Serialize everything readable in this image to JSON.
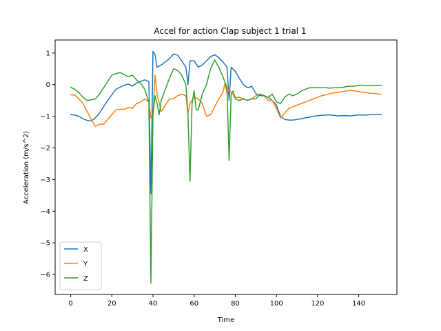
{
  "chart_data": {
    "type": "line",
    "title": "Accel for action Clap subject 1 trial 1",
    "xlabel": "Time",
    "ylabel": "Acceleration (m/s^2)",
    "xlim": [
      -7.55,
      158.55
    ],
    "ylim": [
      -6.63,
      1.41
    ],
    "xticks": [
      0,
      20,
      40,
      60,
      80,
      100,
      120,
      140
    ],
    "yticks": [
      -6,
      -5,
      -4,
      -3,
      -2,
      -1,
      0,
      1
    ],
    "legend": "bottom-left",
    "grid": false,
    "series": [
      {
        "name": "X",
        "color": "#1f77b4",
        "points": [
          [
            0,
            -0.95
          ],
          [
            2,
            -0.96
          ],
          [
            4,
            -1.0
          ],
          [
            6,
            -1.08
          ],
          [
            8,
            -1.13
          ],
          [
            10,
            -1.15
          ],
          [
            12,
            -1.05
          ],
          [
            14,
            -0.9
          ],
          [
            16,
            -0.7
          ],
          [
            18,
            -0.5
          ],
          [
            20,
            -0.32
          ],
          [
            22,
            -0.15
          ],
          [
            24,
            -0.08
          ],
          [
            26,
            -0.02
          ],
          [
            28,
            0.02
          ],
          [
            30,
            -0.05
          ],
          [
            32,
            0.05
          ],
          [
            34,
            0.1
          ],
          [
            36,
            0.15
          ],
          [
            38,
            0.1
          ],
          [
            39,
            -3.45
          ],
          [
            40,
            1.05
          ],
          [
            41,
            0.95
          ],
          [
            42,
            0.55
          ],
          [
            44,
            0.62
          ],
          [
            46,
            0.72
          ],
          [
            48,
            0.82
          ],
          [
            50,
            0.97
          ],
          [
            52,
            0.93
          ],
          [
            54,
            0.75
          ],
          [
            56,
            0.55
          ],
          [
            57,
            0.0
          ],
          [
            58,
            0.75
          ],
          [
            60,
            0.75
          ],
          [
            62,
            0.55
          ],
          [
            64,
            0.62
          ],
          [
            66,
            0.75
          ],
          [
            68,
            0.88
          ],
          [
            70,
            0.95
          ],
          [
            72,
            0.85
          ],
          [
            74,
            0.72
          ],
          [
            76,
            0.55
          ],
          [
            77,
            -0.5
          ],
          [
            78,
            0.55
          ],
          [
            80,
            0.42
          ],
          [
            82,
            0.2
          ],
          [
            84,
            0.0
          ],
          [
            86,
            -0.1
          ],
          [
            88,
            -0.05
          ],
          [
            90,
            -0.28
          ],
          [
            92,
            -0.35
          ],
          [
            94,
            -0.35
          ],
          [
            96,
            -0.4
          ],
          [
            98,
            -0.5
          ],
          [
            100,
            -0.65
          ],
          [
            102,
            -1.0
          ],
          [
            104,
            -1.1
          ],
          [
            106,
            -1.12
          ],
          [
            108,
            -1.12
          ],
          [
            110,
            -1.1
          ],
          [
            112,
            -1.08
          ],
          [
            114,
            -1.05
          ],
          [
            116,
            -1.03
          ],
          [
            118,
            -1.0
          ],
          [
            120,
            -0.98
          ],
          [
            122,
            -0.97
          ],
          [
            124,
            -0.96
          ],
          [
            126,
            -0.96
          ],
          [
            128,
            -0.97
          ],
          [
            130,
            -0.99
          ],
          [
            132,
            -0.98
          ],
          [
            134,
            -0.98
          ],
          [
            136,
            -0.99
          ],
          [
            138,
            -0.97
          ],
          [
            140,
            -0.96
          ],
          [
            142,
            -0.96
          ],
          [
            144,
            -0.96
          ],
          [
            146,
            -0.95
          ],
          [
            148,
            -0.95
          ],
          [
            150,
            -0.95
          ],
          [
            151,
            -0.94
          ]
        ]
      },
      {
        "name": "Y",
        "color": "#ff7f0e",
        "points": [
          [
            0,
            -0.32
          ],
          [
            2,
            -0.33
          ],
          [
            4,
            -0.45
          ],
          [
            6,
            -0.6
          ],
          [
            8,
            -0.85
          ],
          [
            10,
            -1.1
          ],
          [
            12,
            -1.32
          ],
          [
            14,
            -1.25
          ],
          [
            16,
            -1.25
          ],
          [
            18,
            -1.1
          ],
          [
            20,
            -0.95
          ],
          [
            22,
            -0.8
          ],
          [
            24,
            -0.78
          ],
          [
            26,
            -0.78
          ],
          [
            28,
            -0.72
          ],
          [
            30,
            -0.75
          ],
          [
            32,
            -0.6
          ],
          [
            34,
            -0.55
          ],
          [
            36,
            -0.45
          ],
          [
            38,
            -0.55
          ],
          [
            39,
            -1.05
          ],
          [
            40,
            -0.9
          ],
          [
            41,
            0.3
          ],
          [
            42,
            -0.3
          ],
          [
            44,
            -0.85
          ],
          [
            46,
            -0.65
          ],
          [
            48,
            -0.45
          ],
          [
            50,
            -0.45
          ],
          [
            52,
            -0.35
          ],
          [
            54,
            -0.3
          ],
          [
            56,
            -0.35
          ],
          [
            57,
            -0.9
          ],
          [
            58,
            -0.6
          ],
          [
            60,
            -0.4
          ],
          [
            62,
            -0.45
          ],
          [
            64,
            -0.6
          ],
          [
            66,
            -1.0
          ],
          [
            68,
            -0.95
          ],
          [
            70,
            -0.7
          ],
          [
            72,
            -0.45
          ],
          [
            74,
            -0.25
          ],
          [
            75,
            0.05
          ],
          [
            76,
            -0.3
          ],
          [
            77,
            -0.15
          ],
          [
            78,
            -0.25
          ],
          [
            80,
            -0.4
          ],
          [
            82,
            -0.4
          ],
          [
            84,
            -0.45
          ],
          [
            86,
            -0.5
          ],
          [
            88,
            -0.45
          ],
          [
            90,
            -0.35
          ],
          [
            92,
            -0.3
          ],
          [
            94,
            -0.35
          ],
          [
            96,
            -0.5
          ],
          [
            98,
            -0.5
          ],
          [
            100,
            -0.75
          ],
          [
            102,
            -1.05
          ],
          [
            104,
            -0.9
          ],
          [
            106,
            -0.75
          ],
          [
            108,
            -0.7
          ],
          [
            110,
            -0.65
          ],
          [
            112,
            -0.6
          ],
          [
            114,
            -0.55
          ],
          [
            116,
            -0.5
          ],
          [
            118,
            -0.45
          ],
          [
            120,
            -0.4
          ],
          [
            122,
            -0.35
          ],
          [
            124,
            -0.32
          ],
          [
            126,
            -0.28
          ],
          [
            128,
            -0.26
          ],
          [
            130,
            -0.25
          ],
          [
            132,
            -0.22
          ],
          [
            134,
            -0.2
          ],
          [
            136,
            -0.18
          ],
          [
            138,
            -0.2
          ],
          [
            140,
            -0.22
          ],
          [
            142,
            -0.24
          ],
          [
            144,
            -0.26
          ],
          [
            146,
            -0.27
          ],
          [
            148,
            -0.28
          ],
          [
            150,
            -0.3
          ],
          [
            151,
            -0.31
          ]
        ]
      },
      {
        "name": "Z",
        "color": "#2ca02c",
        "points": [
          [
            0,
            -0.08
          ],
          [
            2,
            -0.15
          ],
          [
            4,
            -0.25
          ],
          [
            6,
            -0.4
          ],
          [
            8,
            -0.5
          ],
          [
            10,
            -0.48
          ],
          [
            12,
            -0.45
          ],
          [
            14,
            -0.3
          ],
          [
            16,
            -0.1
          ],
          [
            18,
            0.1
          ],
          [
            20,
            0.3
          ],
          [
            22,
            0.35
          ],
          [
            24,
            0.38
          ],
          [
            26,
            0.32
          ],
          [
            28,
            0.25
          ],
          [
            30,
            0.3
          ],
          [
            32,
            0.15
          ],
          [
            34,
            0.05
          ],
          [
            36,
            -0.15
          ],
          [
            38,
            -0.55
          ],
          [
            39,
            -6.28
          ],
          [
            40,
            -0.95
          ],
          [
            41,
            -0.35
          ],
          [
            42,
            -0.6
          ],
          [
            43,
            -0.95
          ],
          [
            44,
            -0.5
          ],
          [
            46,
            -0.15
          ],
          [
            48,
            0.2
          ],
          [
            50,
            0.5
          ],
          [
            52,
            0.45
          ],
          [
            54,
            0.3
          ],
          [
            56,
            0.0
          ],
          [
            57,
            -0.95
          ],
          [
            58,
            -3.05
          ],
          [
            59,
            -0.6
          ],
          [
            60,
            -0.2
          ],
          [
            61,
            -0.8
          ],
          [
            62,
            -0.8
          ],
          [
            64,
            -0.3
          ],
          [
            66,
            0.0
          ],
          [
            68,
            0.5
          ],
          [
            70,
            0.78
          ],
          [
            72,
            0.55
          ],
          [
            74,
            0.25
          ],
          [
            76,
            -0.1
          ],
          [
            77,
            -2.4
          ],
          [
            78,
            -0.3
          ],
          [
            79,
            -0.2
          ],
          [
            80,
            -0.45
          ],
          [
            82,
            -0.5
          ],
          [
            84,
            -0.45
          ],
          [
            86,
            -0.5
          ],
          [
            88,
            -0.45
          ],
          [
            90,
            -0.45
          ],
          [
            92,
            -0.3
          ],
          [
            94,
            -0.35
          ],
          [
            96,
            -0.4
          ],
          [
            98,
            -0.3
          ],
          [
            100,
            -0.55
          ],
          [
            102,
            -0.6
          ],
          [
            104,
            -0.4
          ],
          [
            106,
            -0.3
          ],
          [
            108,
            -0.35
          ],
          [
            110,
            -0.3
          ],
          [
            112,
            -0.2
          ],
          [
            114,
            -0.15
          ],
          [
            116,
            -0.1
          ],
          [
            118,
            -0.1
          ],
          [
            120,
            -0.1
          ],
          [
            122,
            -0.1
          ],
          [
            124,
            -0.1
          ],
          [
            126,
            -0.11
          ],
          [
            128,
            -0.1
          ],
          [
            130,
            -0.1
          ],
          [
            132,
            -0.09
          ],
          [
            134,
            -0.06
          ],
          [
            136,
            -0.05
          ],
          [
            138,
            -0.05
          ],
          [
            140,
            -0.02
          ],
          [
            142,
            -0.02
          ],
          [
            144,
            -0.03
          ],
          [
            146,
            -0.03
          ],
          [
            148,
            -0.02
          ],
          [
            150,
            -0.02
          ],
          [
            151,
            -0.02
          ]
        ]
      }
    ]
  }
}
